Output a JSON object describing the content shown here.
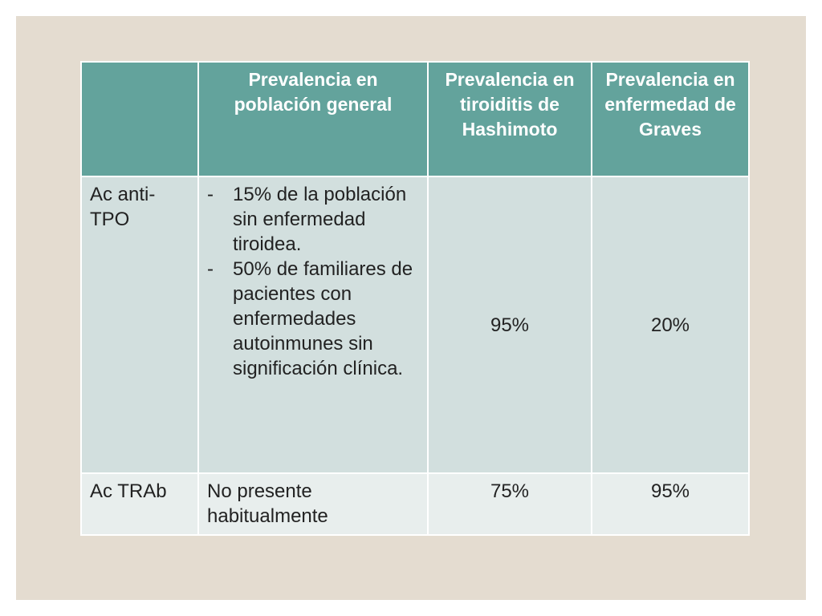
{
  "table": {
    "headers": [
      "",
      "Prevalencia en población general",
      "Prevalencia en tiroiditis de Hashimoto",
      "Prevalencia en enfermedad de Graves"
    ],
    "rows": [
      {
        "label": "Ac anti-TPO",
        "general_bullet_marker": "-",
        "general_bullets": [
          "15% de la población sin enfermedad tiroidea.",
          "50% de familiares de pacientes con enfermedades autoinmunes sin significación clínica."
        ],
        "hashimoto": "95%",
        "graves": "20%"
      },
      {
        "label": "Ac TRAb",
        "general": "No presente habitualmente",
        "hashimoto": "75%",
        "graves": "95%"
      }
    ]
  },
  "colors": {
    "slide_background": "#e4dcd0",
    "header_fill": "#63a39c",
    "row_odd_fill": "#d2dfde",
    "row_even_fill": "#e8eeed"
  }
}
